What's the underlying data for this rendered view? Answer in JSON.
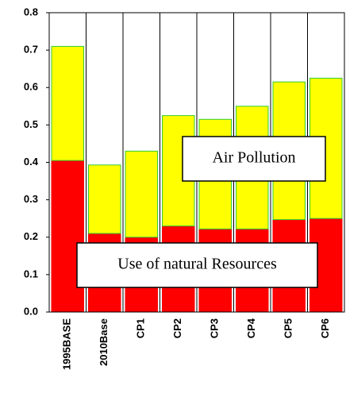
{
  "chart_data": {
    "type": "stacked-bar",
    "categories": [
      "1995BASE",
      "2010Base",
      "CP1",
      "CP2",
      "CP3",
      "CP4",
      "CP5",
      "CP6"
    ],
    "series": [
      {
        "name": "Use of natural Resources",
        "color": "#ff0000",
        "values": [
          0.405,
          0.21,
          0.2,
          0.23,
          0.222,
          0.222,
          0.247,
          0.25
        ]
      },
      {
        "name": "Air Pollution",
        "color": "#ffff00",
        "values": [
          0.305,
          0.183,
          0.23,
          0.295,
          0.293,
          0.328,
          0.368,
          0.375
        ]
      }
    ],
    "ylim": [
      0,
      0.8
    ],
    "yticks": [
      {
        "value": 0,
        "label": "0.0"
      },
      0.1,
      0.2,
      0.3,
      0.4,
      0.5,
      0.6,
      0.7,
      0.8
    ],
    "grid": "vertical"
  }
}
